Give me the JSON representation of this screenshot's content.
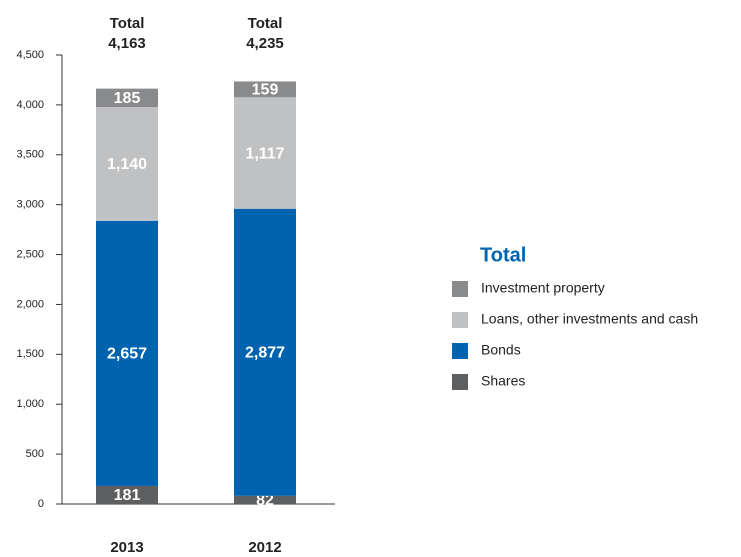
{
  "chart_data": {
    "type": "bar",
    "stacked": true,
    "categories": [
      "2013",
      "2012"
    ],
    "total_title": "Total",
    "totals": [
      4163,
      4235
    ],
    "total_labels": [
      "4,163",
      "4,235"
    ],
    "legend_title": "Total",
    "series": [
      {
        "name": "Shares",
        "color": "#5d5e60",
        "values": [
          181,
          82
        ],
        "value_labels": [
          "181",
          "82"
        ]
      },
      {
        "name": "Bonds",
        "color": "#0063b0",
        "values": [
          2657,
          2877
        ],
        "value_labels": [
          "2,657",
          "2,877"
        ]
      },
      {
        "name": "Loans, other investments and cash",
        "color": "#c0c1c3",
        "values": [
          1140,
          1117
        ],
        "value_labels": [
          "1,140",
          "1,117"
        ]
      },
      {
        "name": "Investment property",
        "color": "#888a8c",
        "values": [
          185,
          159
        ],
        "value_labels": [
          "185",
          "159"
        ]
      }
    ],
    "ylim": [
      0,
      4500
    ],
    "yticks": [
      0,
      500,
      {
        "value": 1000,
        "label": "1,000"
      },
      {
        "value": 1500,
        "label": "1,500"
      },
      {
        "value": 2000,
        "label": "2,000"
      },
      {
        "value": 2500,
        "label": "2,500"
      },
      {
        "value": 3000,
        "label": "3,000"
      },
      {
        "value": 3500,
        "label": "3,500"
      },
      {
        "value": 4000,
        "label": "4,000"
      },
      {
        "value": 4500,
        "label": "4,500"
      }
    ],
    "legend_position": "right"
  }
}
